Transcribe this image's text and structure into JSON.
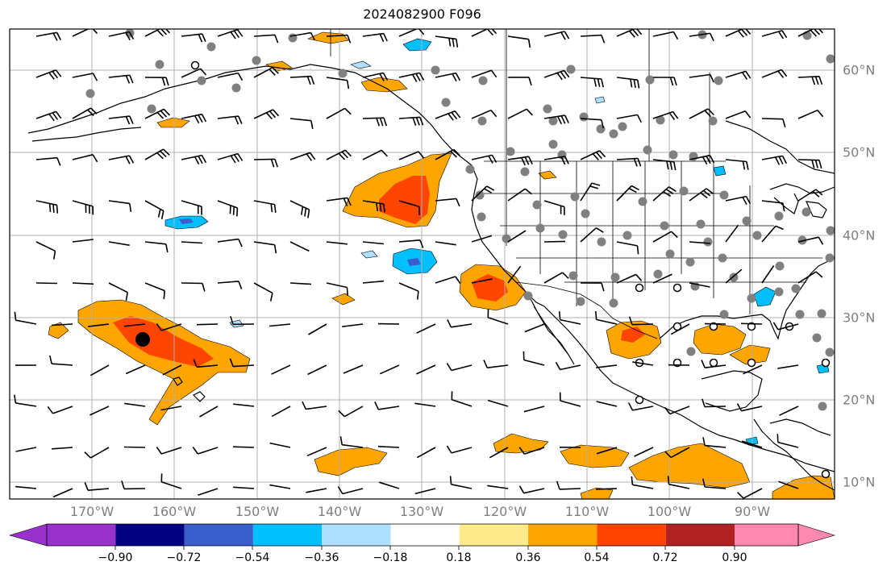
{
  "title": "2024082900 F096",
  "map": {
    "projection": "PlateCarree",
    "extent_lon": [
      -180,
      -80
    ],
    "extent_lat": [
      8,
      65
    ],
    "longitude_labels": [
      "170°W",
      "160°W",
      "150°W",
      "140°W",
      "130°W",
      "120°W",
      "110°W",
      "100°W",
      "90°W"
    ],
    "latitude_labels": [
      "60°N",
      "50°N",
      "40°N",
      "30°N",
      "20°N",
      "10°N"
    ],
    "gridlines": true,
    "coastlines": true,
    "borders": true,
    "wind_barbs": true
  },
  "colorbar": {
    "tick_labels": [
      "−0.90",
      "−0.72",
      "−0.54",
      "−0.36",
      "−0.18",
      "0.18",
      "0.36",
      "0.54",
      "0.72",
      "0.90"
    ],
    "colors": [
      "#9932cc",
      "#000080",
      "#3a5fcd",
      "#00bfff",
      "#b0e0ff",
      "#ffffff",
      "#ffeb8c",
      "#ffa500",
      "#ff4500",
      "#b22222",
      "#ff88b0"
    ],
    "extend": "both"
  },
  "colors": {
    "orange": "#ffa500",
    "red_orange": "#ff4500",
    "light_blue": "#b0e0ff",
    "deep_sky_blue": "#00bfff",
    "royal_blue": "#3a5fcd",
    "station_fill": "#808080",
    "grid": "#b0b0b0"
  }
}
